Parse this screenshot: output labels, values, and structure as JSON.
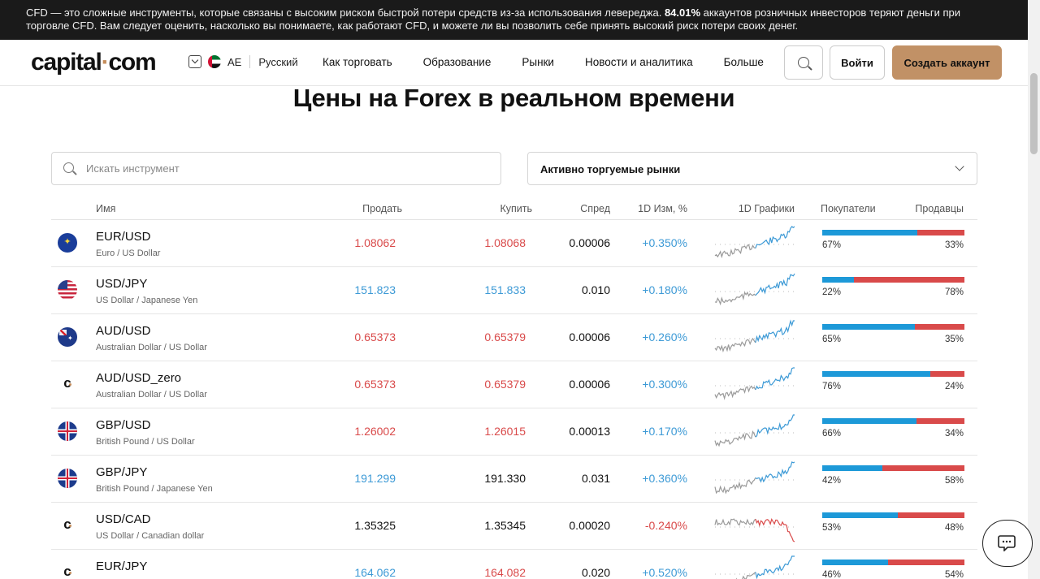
{
  "banner": {
    "text_before": "CFD — это сложные инструменты, которые связаны с высоким риском быстрой потери средств из-за использования левереджа. ",
    "highlight": "84.01%",
    "text_after": " аккаунтов розничных инвесторов теряют деньги при торговле CFD. Вам следует оценить, насколько вы понимаете, как работают CFD, и можете ли вы позволить себе принять высокий риск потери своих денег."
  },
  "header": {
    "logo_left": "capital",
    "logo_dot": "·",
    "logo_right": "com",
    "region": "AE",
    "language": "Русский",
    "nav": [
      "Как торговать",
      "Образование",
      "Рынки",
      "Новости и аналитика",
      "Больше"
    ],
    "login_label": "Войти",
    "create_label": "Создать аккаунт"
  },
  "page_title": "Цены на Forex в реальном времени",
  "search": {
    "placeholder": "Искать инструмент",
    "value": ""
  },
  "market_select": {
    "selected": "Активно торгуемые рынки"
  },
  "table": {
    "headers": {
      "name": "Имя",
      "sell": "Продать",
      "buy": "Купить",
      "spread": "Спред",
      "change": "1D Изм, %",
      "chart": "1D Графики",
      "buyers": "Покупатели",
      "sellers": "Продавцы"
    },
    "rows": [
      {
        "flag": "eu",
        "symbol": "EUR/USD",
        "desc": "Euro / US Dollar",
        "sell": "1.08062",
        "sell_dir": "down",
        "buy": "1.08068",
        "buy_dir": "down",
        "spread": "0.00006",
        "change": "+0.350%",
        "change_dir": "up",
        "buyers": 67,
        "sellers": 33,
        "buyers_label": "67%",
        "sellers_label": "33%",
        "trend": "up"
      },
      {
        "flag": "us",
        "symbol": "USD/JPY",
        "desc": "US Dollar / Japanese Yen",
        "sell": "151.823",
        "sell_dir": "up",
        "buy": "151.833",
        "buy_dir": "up",
        "spread": "0.010",
        "change": "+0.180%",
        "change_dir": "up",
        "buyers": 22,
        "sellers": 78,
        "buyers_label": "22%",
        "sellers_label": "78%",
        "trend": "up"
      },
      {
        "flag": "au",
        "symbol": "AUD/USD",
        "desc": "Australian Dollar / US Dollar",
        "sell": "0.65373",
        "sell_dir": "down",
        "buy": "0.65379",
        "buy_dir": "down",
        "spread": "0.00006",
        "change": "+0.260%",
        "change_dir": "up",
        "buyers": 65,
        "sellers": 35,
        "buyers_label": "65%",
        "sellers_label": "35%",
        "trend": "up"
      },
      {
        "flag": "cap",
        "symbol": "AUD/USD_zero",
        "desc": "Australian Dollar / US Dollar",
        "sell": "0.65373",
        "sell_dir": "down",
        "buy": "0.65379",
        "buy_dir": "down",
        "spread": "0.00006",
        "change": "+0.300%",
        "change_dir": "up",
        "buyers": 76,
        "sellers": 24,
        "buyers_label": "76%",
        "sellers_label": "24%",
        "trend": "up"
      },
      {
        "flag": "gb",
        "symbol": "GBP/USD",
        "desc": "British Pound / US Dollar",
        "sell": "1.26002",
        "sell_dir": "down",
        "buy": "1.26015",
        "buy_dir": "down",
        "spread": "0.00013",
        "change": "+0.170%",
        "change_dir": "up",
        "buyers": 66,
        "sellers": 34,
        "buyers_label": "66%",
        "sellers_label": "34%",
        "trend": "up"
      },
      {
        "flag": "gb",
        "symbol": "GBP/JPY",
        "desc": "British Pound / Japanese Yen",
        "sell": "191.299",
        "sell_dir": "up",
        "buy": "191.330",
        "buy_dir": "flat",
        "spread": "0.031",
        "change": "+0.360%",
        "change_dir": "up",
        "buyers": 42,
        "sellers": 58,
        "buyers_label": "42%",
        "sellers_label": "58%",
        "trend": "up"
      },
      {
        "flag": "cap",
        "symbol": "USD/CAD",
        "desc": "US Dollar / Canadian dollar",
        "sell": "1.35325",
        "sell_dir": "flat",
        "buy": "1.35345",
        "buy_dir": "flat",
        "spread": "0.00020",
        "change": "-0.240%",
        "change_dir": "down",
        "buyers": 53,
        "sellers": 48,
        "buyers_label": "53%",
        "sellers_label": "48%",
        "trend": "down"
      },
      {
        "flag": "cap",
        "symbol": "EUR/JPY",
        "desc": "",
        "sell": "164.062",
        "sell_dir": "up",
        "buy": "164.082",
        "buy_dir": "down",
        "spread": "0.020",
        "change": "+0.520%",
        "change_dir": "up",
        "buyers": 46,
        "sellers": 54,
        "buyers_label": "46%",
        "sellers_label": "54%",
        "trend": "up"
      }
    ]
  },
  "colors": {
    "buyers": "#1d99d8",
    "sellers": "#d94a4a",
    "accent": "#c19166",
    "up": "#3d9ad6",
    "down": "#d94a4a"
  },
  "icons": {
    "search": "search-icon",
    "chat": "chat-icon",
    "region_toggle": "chevron-down-icon"
  }
}
